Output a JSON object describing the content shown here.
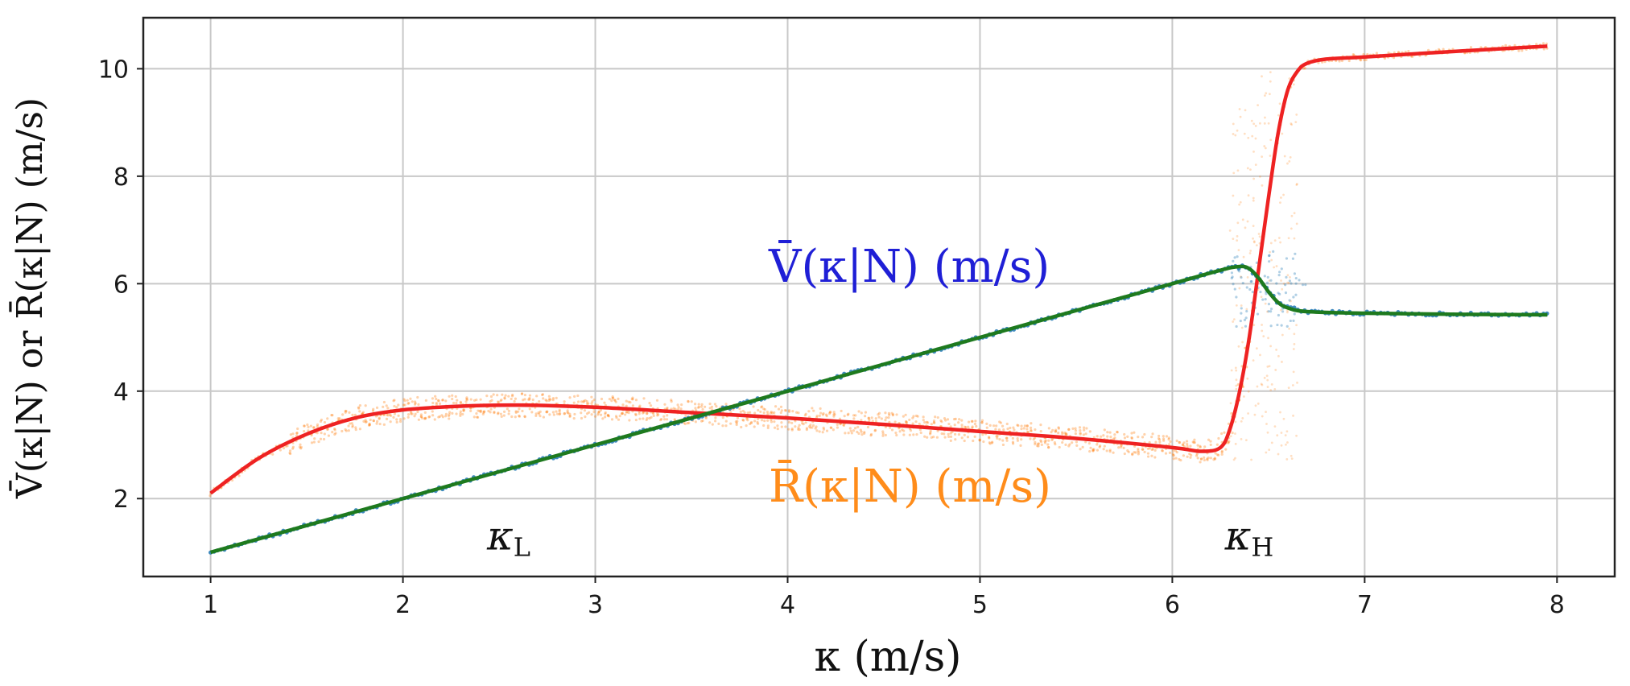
{
  "chart_data": {
    "type": "line",
    "xlabel": "κ  (m/s)",
    "ylabel": "V̄(κ|N) or R̄(κ|N) (m/s)",
    "xlim": [
      0.65,
      8.3
    ],
    "ylim": [
      0.55,
      10.95
    ],
    "x_ticks": [
      1,
      2,
      3,
      4,
      5,
      6,
      7,
      8
    ],
    "y_ticks": [
      2,
      4,
      6,
      8,
      10
    ],
    "grid": true,
    "series": [
      {
        "name": "V̄(κ|N)  (m/s)",
        "label_color": "#1f1fd6",
        "line_color": "#1e7a1e",
        "point_color": "#1f77b4",
        "x": [
          1.0,
          2.0,
          3.0,
          4.0,
          5.0,
          6.0,
          6.25,
          6.35,
          6.4,
          6.45,
          6.5,
          6.55,
          6.6,
          6.7,
          7.0,
          7.5,
          7.95
        ],
        "y": [
          1.0,
          2.0,
          3.0,
          4.0,
          5.0,
          6.0,
          6.25,
          6.32,
          6.28,
          6.1,
          5.85,
          5.65,
          5.55,
          5.48,
          5.45,
          5.43,
          5.42
        ]
      },
      {
        "name": "R̄(κ|N)  (m/s)",
        "label_color": "#ff8c1a",
        "line_color": "#ee2222",
        "point_color": "#ff7f0e",
        "x": [
          1.0,
          1.25,
          1.5,
          1.75,
          2.0,
          2.3,
          2.6,
          3.0,
          3.5,
          4.0,
          4.5,
          5.0,
          5.5,
          6.0,
          6.15,
          6.25,
          6.3,
          6.35,
          6.4,
          6.45,
          6.5,
          6.55,
          6.6,
          6.65,
          6.7,
          6.8,
          7.0,
          7.5,
          7.95
        ],
        "y": [
          2.1,
          2.75,
          3.2,
          3.5,
          3.65,
          3.72,
          3.74,
          3.7,
          3.6,
          3.5,
          3.38,
          3.25,
          3.12,
          2.95,
          2.88,
          2.95,
          3.3,
          4.0,
          5.0,
          6.3,
          7.6,
          8.8,
          9.6,
          9.95,
          10.1,
          10.18,
          10.22,
          10.33,
          10.42
        ]
      }
    ],
    "annotations": [
      {
        "text": "κ",
        "sub": "L",
        "x": 2.55,
        "y": 1.05
      },
      {
        "text": "κ",
        "sub": "H",
        "x": 6.4,
        "y": 1.05
      }
    ]
  }
}
